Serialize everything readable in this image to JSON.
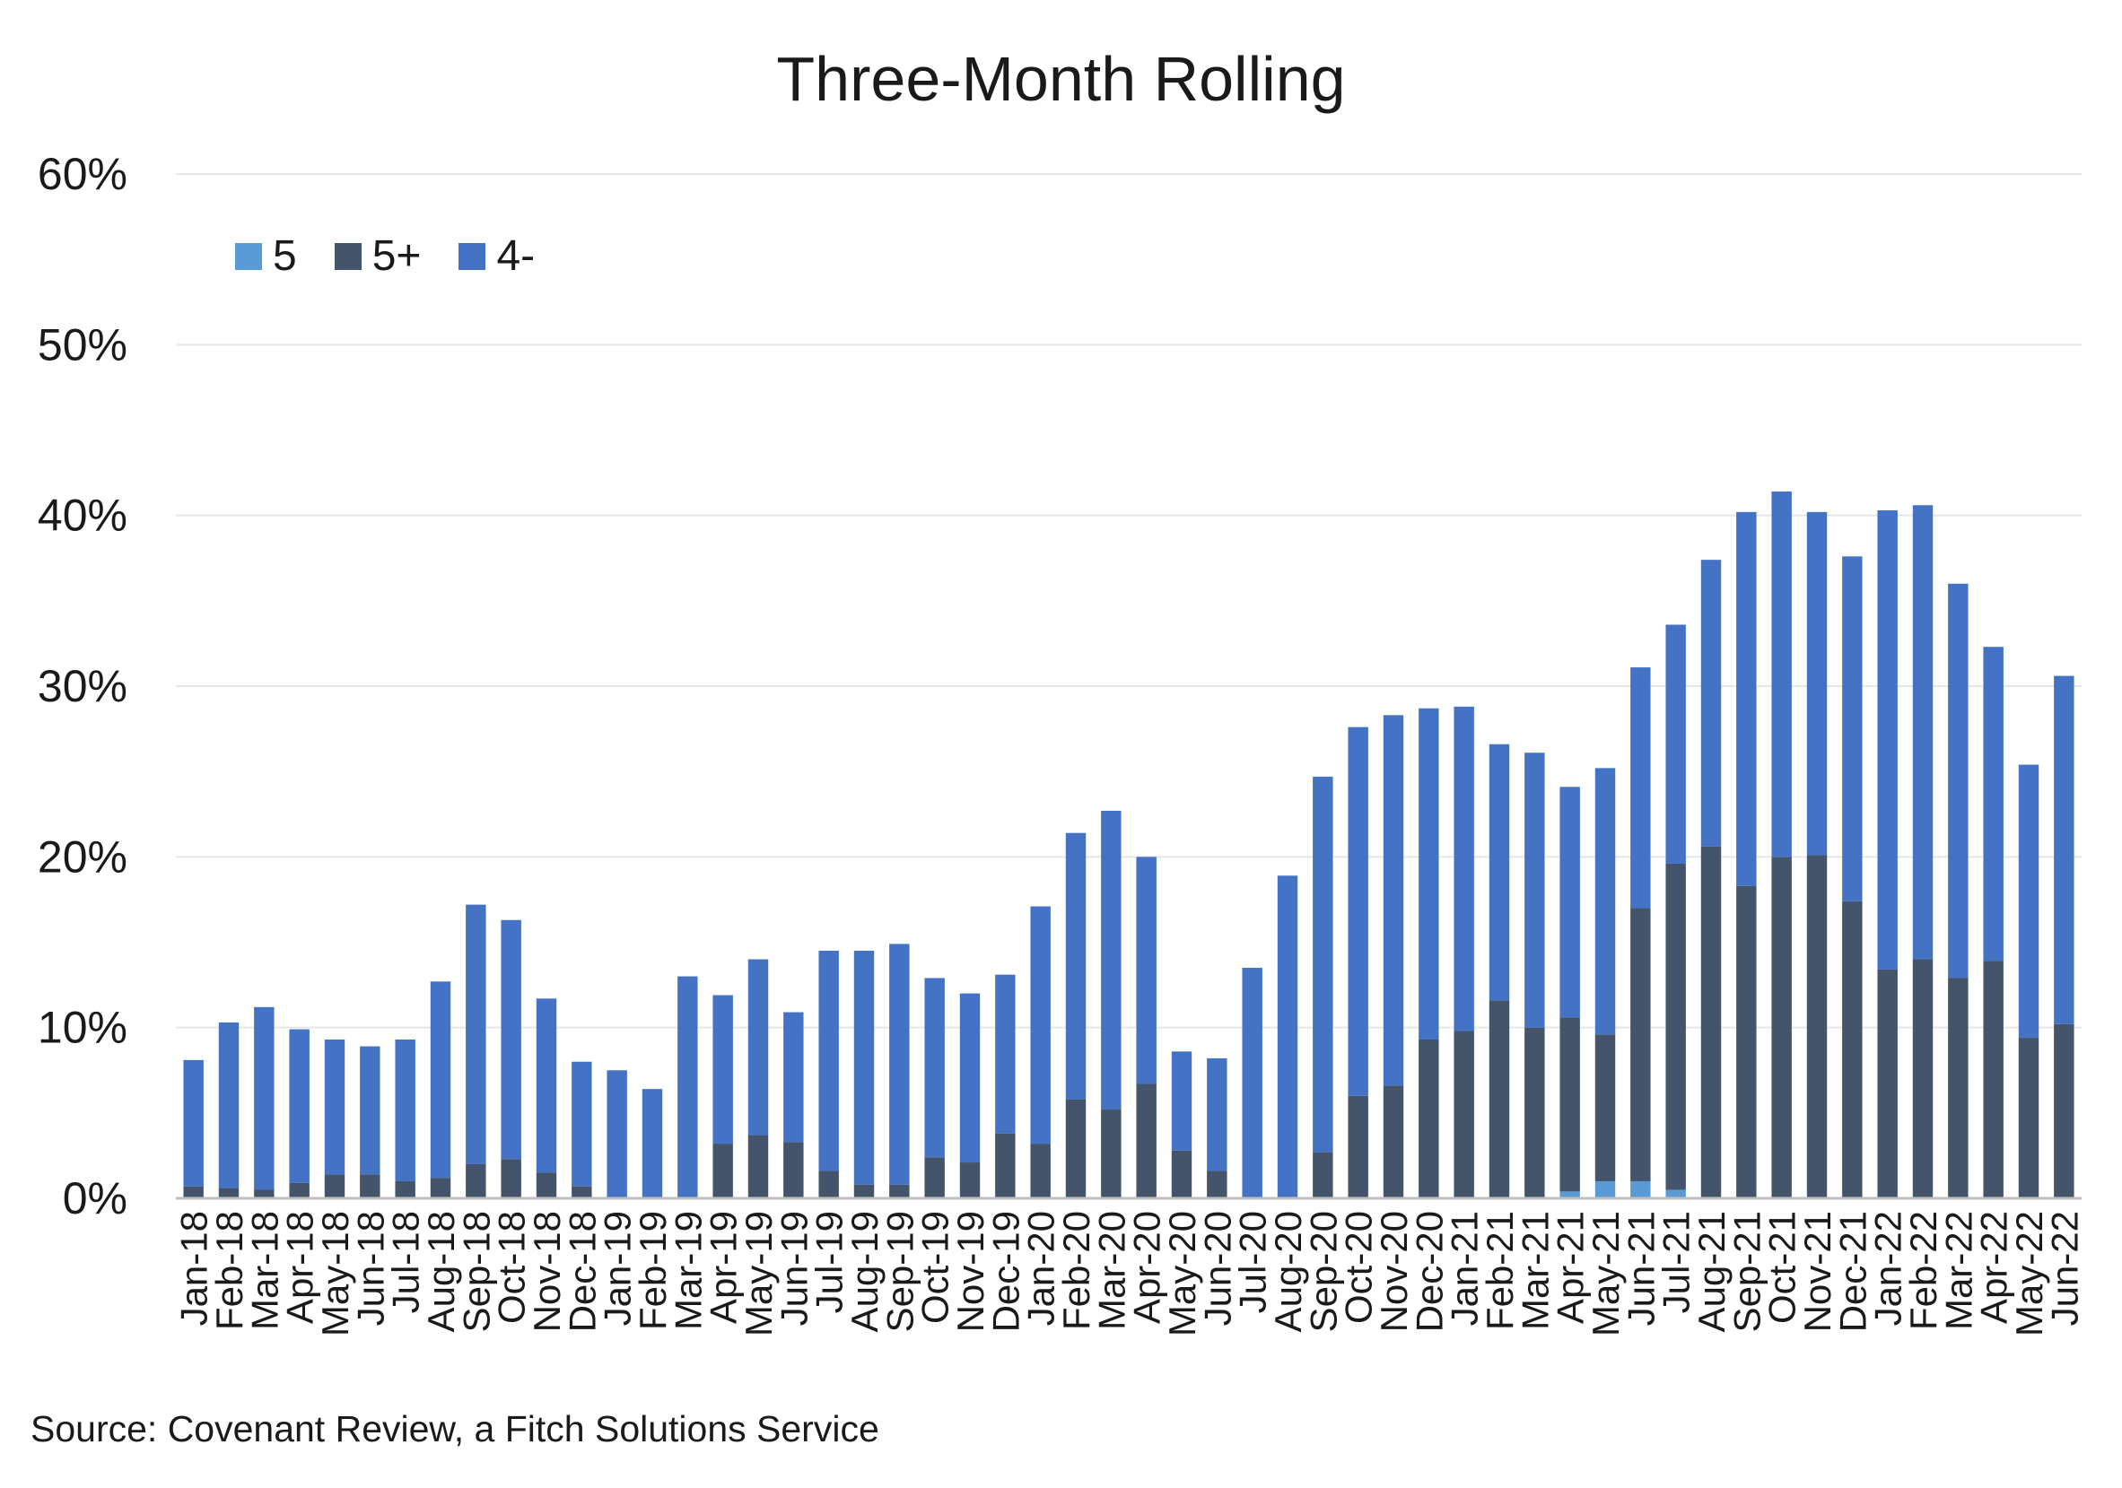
{
  "chart_data": {
    "type": "bar",
    "stacked": true,
    "title": "Three-Month Rolling",
    "xlabel": "",
    "ylabel": "",
    "ylim": [
      0,
      60
    ],
    "yticks": [
      "0%",
      "10%",
      "20%",
      "30%",
      "40%",
      "50%",
      "60%"
    ],
    "grid": true,
    "legend_position": "top-left",
    "categories": [
      "Jan-18",
      "Feb-18",
      "Mar-18",
      "Apr-18",
      "May-18",
      "Jun-18",
      "Jul-18",
      "Aug-18",
      "Sep-18",
      "Oct-18",
      "Nov-18",
      "Dec-18",
      "Jan-19",
      "Feb-19",
      "Mar-19",
      "Apr-19",
      "May-19",
      "Jun-19",
      "Jul-19",
      "Aug-19",
      "Sep-19",
      "Oct-19",
      "Nov-19",
      "Dec-19",
      "Jan-20",
      "Feb-20",
      "Mar-20",
      "Apr-20",
      "May-20",
      "Jun-20",
      "Jul-20",
      "Aug-20",
      "Sep-20",
      "Oct-20",
      "Nov-20",
      "Dec-20",
      "Jan-21",
      "Feb-21",
      "Mar-21",
      "Apr-21",
      "May-21",
      "Jun-21",
      "Jul-21",
      "Aug-21",
      "Sep-21",
      "Oct-21",
      "Nov-21",
      "Dec-21",
      "Jan-22",
      "Feb-22",
      "Mar-22",
      "Apr-22",
      "May-22",
      "Jun-22"
    ],
    "series": [
      {
        "name": "5",
        "color": "#5b9bd5",
        "values": [
          0,
          0,
          0,
          0,
          0,
          0,
          0,
          0,
          0,
          0,
          0,
          0,
          0,
          0,
          0,
          0,
          0,
          0,
          0,
          0,
          0,
          0,
          0,
          0,
          0,
          0,
          0,
          0,
          0,
          0,
          0,
          0,
          0,
          0,
          0,
          0,
          0,
          0,
          0,
          0.4,
          1.0,
          1.0,
          0.5,
          0,
          0,
          0,
          0,
          0,
          0,
          0,
          0,
          0,
          0,
          0
        ]
      },
      {
        "name": "5+",
        "color": "#44546a",
        "values": [
          0.7,
          0.6,
          0.5,
          0.9,
          1.4,
          1.4,
          1.0,
          1.2,
          2.0,
          2.3,
          1.5,
          0.7,
          0,
          0,
          0,
          3.2,
          3.7,
          3.3,
          1.6,
          0.8,
          0.8,
          2.4,
          2.1,
          3.8,
          3.2,
          5.8,
          5.2,
          6.7,
          2.8,
          1.6,
          0,
          0,
          2.7,
          6.0,
          6.6,
          9.3,
          9.8,
          11.6,
          10.0,
          10.2,
          8.6,
          16.0,
          19.1,
          20.6,
          18.3,
          20.0,
          20.1,
          17.4,
          13.4,
          14.0,
          12.9,
          13.9,
          9.4,
          10.2
        ]
      },
      {
        "name": "4-",
        "color": "#4472c4",
        "values": [
          7.4,
          9.7,
          10.7,
          9.0,
          7.9,
          7.5,
          8.3,
          11.5,
          15.2,
          14.0,
          10.2,
          7.3,
          7.5,
          6.4,
          13.0,
          8.7,
          10.3,
          7.6,
          12.9,
          13.7,
          14.1,
          10.5,
          9.9,
          9.3,
          13.9,
          15.6,
          17.5,
          13.3,
          5.8,
          6.6,
          13.5,
          18.9,
          22.0,
          21.6,
          21.7,
          19.4,
          19.0,
          15.0,
          16.1,
          13.5,
          15.6,
          14.1,
          14.0,
          16.8,
          21.9,
          21.4,
          20.1,
          20.2,
          26.9,
          26.6,
          23.1,
          18.4,
          16.0,
          20.4
        ]
      }
    ]
  },
  "source": "Source: Covenant Review, a Fitch Solutions Service"
}
